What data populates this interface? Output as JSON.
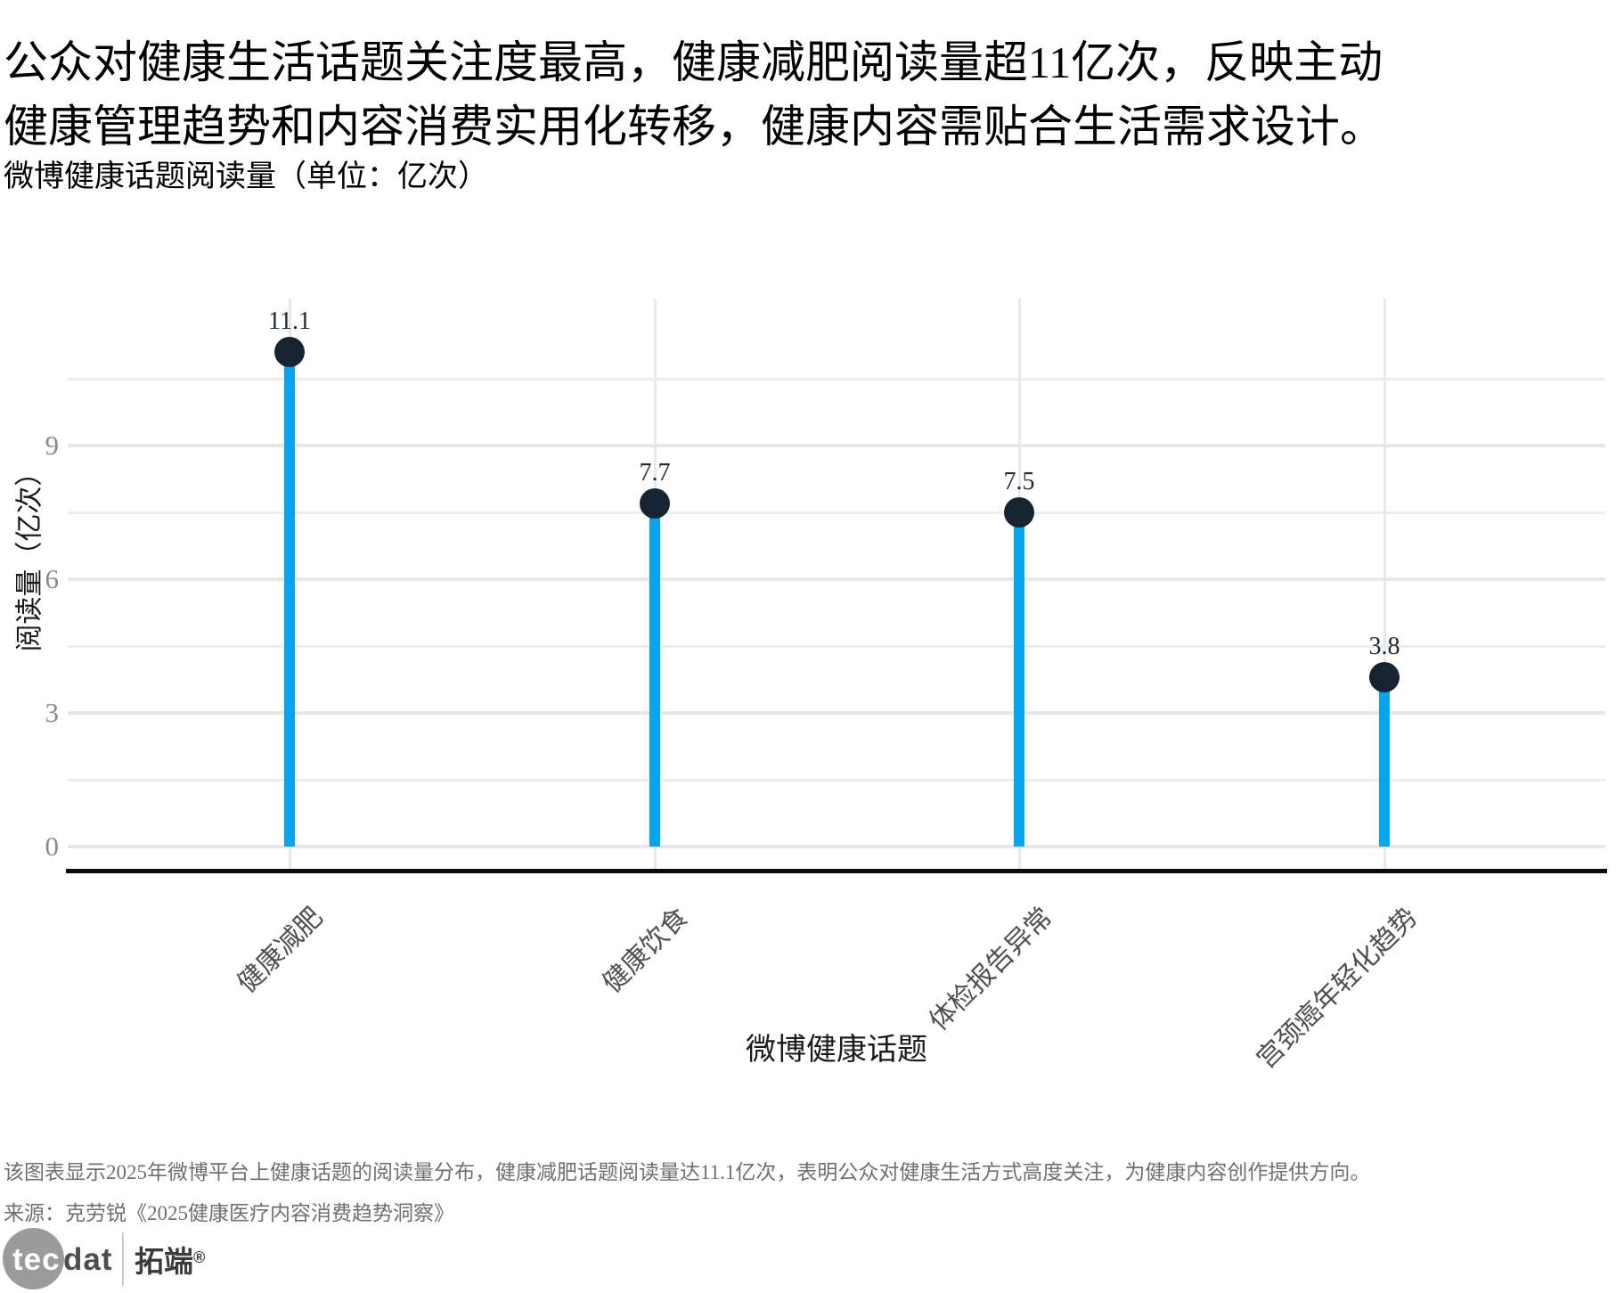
{
  "title": "公众对健康生活话题关注度最高，健康减肥阅读量超11亿次，反映主动健康管理趋势和内容消费实用化转移，健康内容需贴合生活需求设计。",
  "subtitle": "微博健康话题阅读量（单位：亿次）",
  "chart_data": {
    "type": "bar",
    "variant": "lollipop",
    "categories": [
      "健康减肥",
      "健康饮食",
      "体检报告异常",
      "宫颈癌年轻化趋势"
    ],
    "values": [
      11.1,
      7.7,
      7.5,
      3.8
    ],
    "value_labels": [
      "11.1",
      "7.7",
      "7.5",
      "3.8"
    ],
    "title": "微博健康话题阅读量（单位：亿次）",
    "xlabel": "微博健康话题",
    "ylabel": "阅读量（亿次）",
    "ylim": [
      0,
      12.3
    ],
    "yticks": [
      0,
      3,
      6,
      9
    ],
    "minor_yticks": [
      1.5,
      4.5,
      7.5,
      10.5
    ],
    "grid": true,
    "legend": "none",
    "colors": {
      "stem": "#06a5ee",
      "dot": "#152430"
    }
  },
  "footer": {
    "note": "该图表显示2025年微博平台上健康话题的阅读量分布，健康减肥话题阅读量达11.1亿次，表明公众对健康生活方式高度关注，为健康内容创作提供方向。",
    "source": "来源：克劳锐《2025健康医疗内容消费趋势洞察》"
  },
  "logo": {
    "circle_text": "tec",
    "outside_text": "dat",
    "brand": "拓端",
    "reg": "®"
  }
}
